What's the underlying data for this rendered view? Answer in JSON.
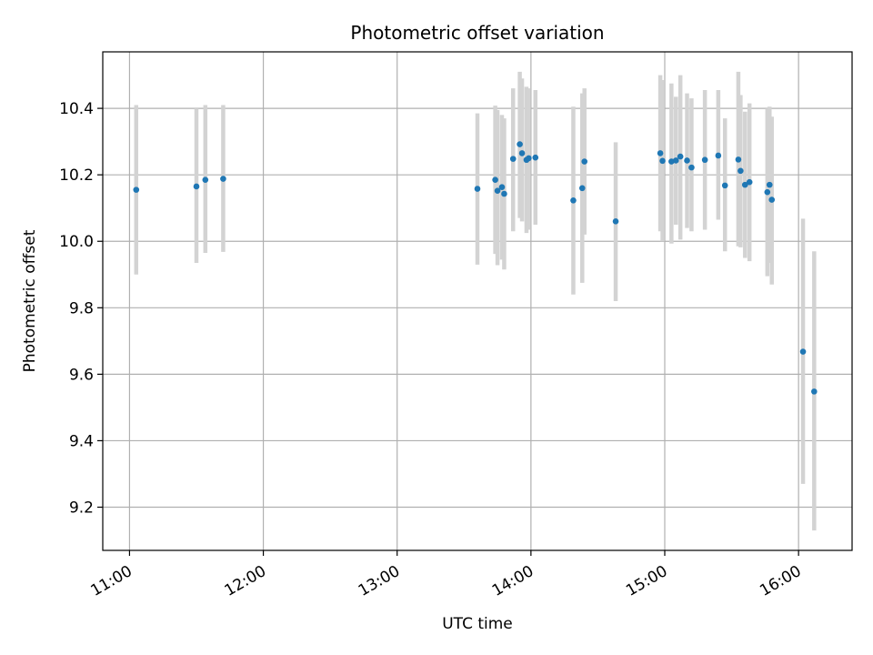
{
  "chart_data": {
    "type": "scatter",
    "title": "Photometric offset variation",
    "xlabel": "UTC time",
    "ylabel": "Photometric offset",
    "xlim": [
      "10:48",
      "16:24"
    ],
    "ylim": [
      9.07,
      10.57
    ],
    "xticks": [
      "11:00",
      "12:00",
      "13:00",
      "14:00",
      "15:00",
      "16:00"
    ],
    "yticks": [
      9.2,
      9.4,
      9.6,
      9.8,
      10.0,
      10.2,
      10.4
    ],
    "grid": true,
    "colors": {
      "point": "#1f77b4",
      "errorbar": "#d3d3d3",
      "grid": "#b0b0b0"
    },
    "points": [
      {
        "x": "11:03",
        "y": 10.155,
        "lo": 9.9,
        "hi": 10.41
      },
      {
        "x": "11:30",
        "y": 10.165,
        "lo": 9.935,
        "hi": 10.4
      },
      {
        "x": "11:34",
        "y": 10.185,
        "lo": 9.965,
        "hi": 10.41
      },
      {
        "x": "11:42",
        "y": 10.188,
        "lo": 9.968,
        "hi": 10.41
      },
      {
        "x": "13:36",
        "y": 10.158,
        "lo": 9.93,
        "hi": 10.385
      },
      {
        "x": "13:44",
        "y": 10.185,
        "lo": 9.962,
        "hi": 10.408
      },
      {
        "x": "13:45",
        "y": 10.152,
        "lo": 9.928,
        "hi": 10.395
      },
      {
        "x": "13:47",
        "y": 10.163,
        "lo": 9.945,
        "hi": 10.38
      },
      {
        "x": "13:48",
        "y": 10.143,
        "lo": 9.915,
        "hi": 10.37
      },
      {
        "x": "13:52",
        "y": 10.248,
        "lo": 10.03,
        "hi": 10.46
      },
      {
        "x": "13:55",
        "y": 10.292,
        "lo": 10.07,
        "hi": 10.51
      },
      {
        "x": "13:56",
        "y": 10.265,
        "lo": 10.06,
        "hi": 10.49
      },
      {
        "x": "13:58",
        "y": 10.245,
        "lo": 10.025,
        "hi": 10.465
      },
      {
        "x": "13:59",
        "y": 10.25,
        "lo": 10.035,
        "hi": 10.46
      },
      {
        "x": "14:02",
        "y": 10.252,
        "lo": 10.05,
        "hi": 10.455
      },
      {
        "x": "14:19",
        "y": 10.123,
        "lo": 9.84,
        "hi": 10.405
      },
      {
        "x": "14:23",
        "y": 10.16,
        "lo": 9.875,
        "hi": 10.445
      },
      {
        "x": "14:24",
        "y": 10.24,
        "lo": 10.02,
        "hi": 10.46
      },
      {
        "x": "14:38",
        "y": 10.06,
        "lo": 9.82,
        "hi": 10.298
      },
      {
        "x": "14:58",
        "y": 10.265,
        "lo": 10.03,
        "hi": 10.5
      },
      {
        "x": "14:59",
        "y": 10.242,
        "lo": 10.0,
        "hi": 10.485
      },
      {
        "x": "15:03",
        "y": 10.24,
        "lo": 9.993,
        "hi": 10.475
      },
      {
        "x": "15:05",
        "y": 10.243,
        "lo": 10.05,
        "hi": 10.435
      },
      {
        "x": "15:07",
        "y": 10.255,
        "lo": 10.005,
        "hi": 10.5
      },
      {
        "x": "15:10",
        "y": 10.243,
        "lo": 10.04,
        "hi": 10.445
      },
      {
        "x": "15:12",
        "y": 10.222,
        "lo": 10.03,
        "hi": 10.43
      },
      {
        "x": "15:18",
        "y": 10.245,
        "lo": 10.035,
        "hi": 10.455
      },
      {
        "x": "15:24",
        "y": 10.258,
        "lo": 10.065,
        "hi": 10.455
      },
      {
        "x": "15:27",
        "y": 10.168,
        "lo": 9.97,
        "hi": 10.37
      },
      {
        "x": "15:33",
        "y": 10.246,
        "lo": 9.985,
        "hi": 10.51
      },
      {
        "x": "15:34",
        "y": 10.212,
        "lo": 9.982,
        "hi": 10.44
      },
      {
        "x": "15:36",
        "y": 10.17,
        "lo": 9.95,
        "hi": 10.39
      },
      {
        "x": "15:38",
        "y": 10.178,
        "lo": 9.94,
        "hi": 10.415
      },
      {
        "x": "15:46",
        "y": 10.148,
        "lo": 9.895,
        "hi": 10.4
      },
      {
        "x": "15:47",
        "y": 10.17,
        "lo": 9.935,
        "hi": 10.405
      },
      {
        "x": "15:48",
        "y": 10.125,
        "lo": 9.87,
        "hi": 10.375
      },
      {
        "x": "16:02",
        "y": 9.668,
        "lo": 9.27,
        "hi": 10.068
      },
      {
        "x": "16:07",
        "y": 9.548,
        "lo": 9.13,
        "hi": 9.97
      }
    ]
  }
}
